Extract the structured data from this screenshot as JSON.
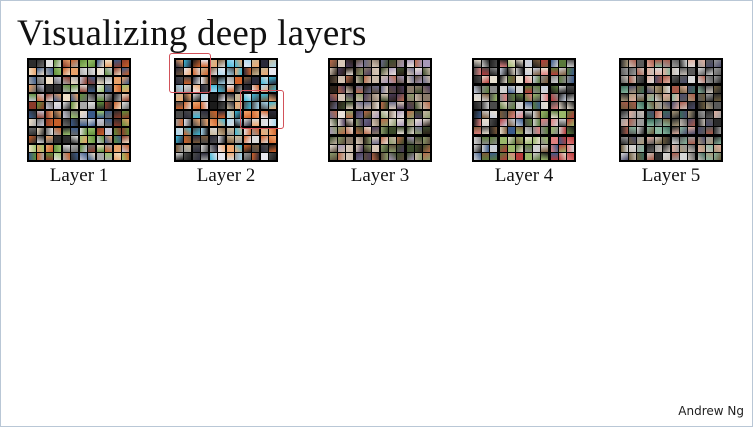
{
  "slide": {
    "title": "Visualizing deep layers",
    "credit": "Andrew Ng"
  },
  "layers": [
    {
      "label": "Layer 1",
      "palette": [
        "#2c2c2c",
        "#6a6a6a",
        "#a8a8a8",
        "#e2e2e2",
        "#5f8e3a",
        "#9cc46e",
        "#c8602a",
        "#e8a26a",
        "#8a3a2a",
        "#c6c6d6",
        "#3a5a8a",
        "#f0e0c8"
      ]
    },
    {
      "label": "Layer 2",
      "palette": [
        "#1b1b1b",
        "#4a4a4a",
        "#9a9a9a",
        "#dadada",
        "#d0622a",
        "#f0a870",
        "#3cb8d8",
        "#a8d8f0",
        "#7a5a3a",
        "#c8b898",
        "#e8e8f0",
        "#2a2a3a"
      ]
    },
    {
      "label": "Layer 3",
      "palette": [
        "#2a2018",
        "#5a4a3a",
        "#8a7a6a",
        "#c8b8a8",
        "#6a6a8a",
        "#a898b8",
        "#3a4a2a",
        "#8a9a6a",
        "#e8e0d8",
        "#b86a4a",
        "#4a3a5a",
        "#d8c8b8"
      ]
    },
    {
      "label": "Layer 4",
      "palette": [
        "#1e1e1e",
        "#4a4a4a",
        "#8a8a8a",
        "#d0d0d0",
        "#5a7a3a",
        "#9ab86a",
        "#b83a3a",
        "#e08080",
        "#3a5a8a",
        "#c8d0e0",
        "#7a5a3a",
        "#e8e0d0"
      ]
    },
    {
      "label": "Layer 5",
      "palette": [
        "#2a2a2a",
        "#5a5a5a",
        "#9a9a9a",
        "#d8d8d8",
        "#6a5a3a",
        "#a8987a",
        "#3a6a5a",
        "#8ab8a0",
        "#a85a4a",
        "#e0b0a0",
        "#4a4a6a",
        "#c8c0b8"
      ]
    }
  ]
}
